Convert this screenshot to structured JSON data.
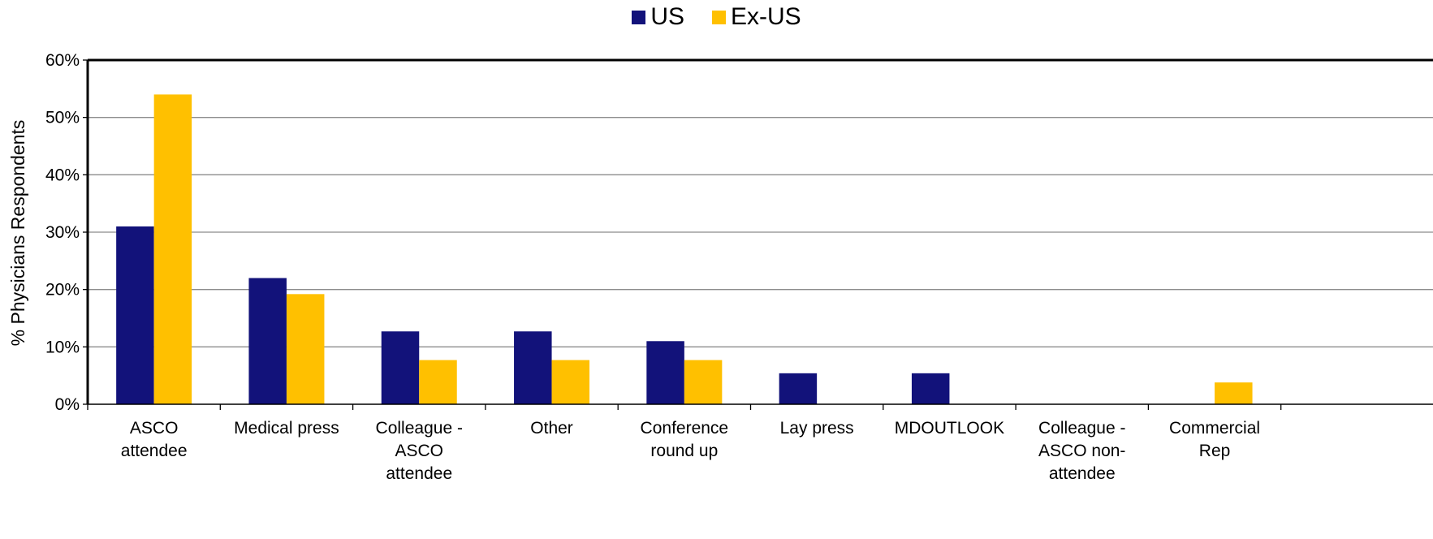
{
  "chart_data": {
    "type": "bar",
    "title": "",
    "xlabel": "",
    "ylabel": "% Physicians Respondents",
    "ylim": [
      0,
      60
    ],
    "yticks": [
      0,
      10,
      20,
      30,
      40,
      50,
      60
    ],
    "ytick_labels": [
      "0%",
      "10%",
      "20%",
      "30%",
      "40%",
      "50%",
      "60%"
    ],
    "grid": true,
    "legend_position": "top-center",
    "categories": [
      [
        "ASCO",
        "attendee"
      ],
      [
        "Medical press"
      ],
      [
        "Colleague -",
        "ASCO",
        "attendee"
      ],
      [
        "Other"
      ],
      [
        "Conference",
        "round up"
      ],
      [
        "Lay press"
      ],
      [
        "MDOUTLOOK"
      ],
      [
        "Colleague -",
        "ASCO non-",
        "attendee"
      ],
      [
        "Commercial",
        "Rep"
      ]
    ],
    "series": [
      {
        "name": "US",
        "color": "#12127a",
        "values": [
          31,
          22,
          12.7,
          12.7,
          11,
          5.4,
          5.4,
          0,
          0
        ]
      },
      {
        "name": "Ex-US",
        "color": "#ffc000",
        "values": [
          54,
          19.2,
          7.7,
          7.7,
          7.7,
          0,
          0,
          0,
          3.8
        ]
      }
    ]
  }
}
